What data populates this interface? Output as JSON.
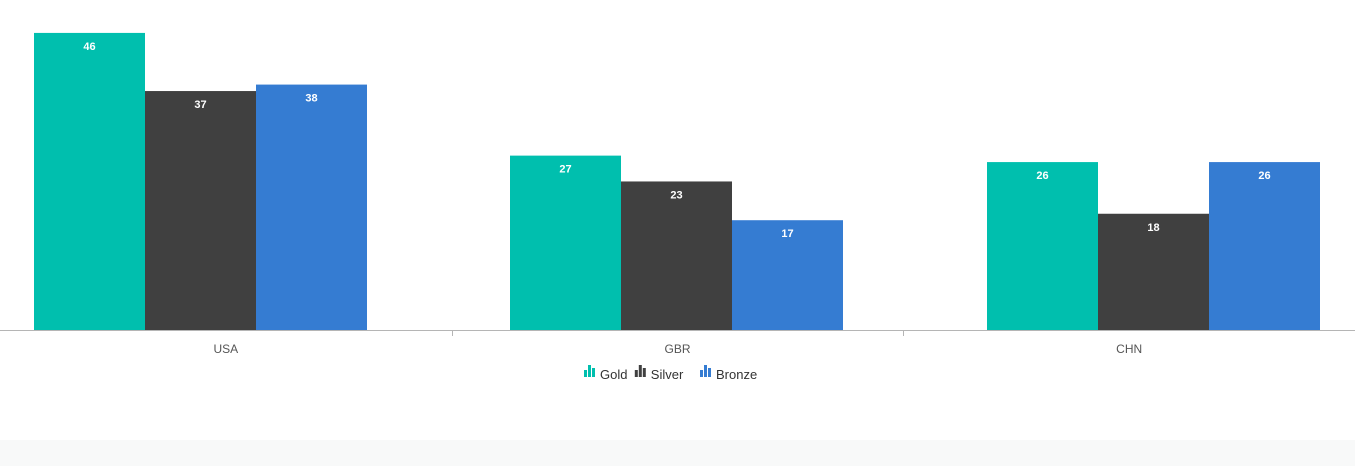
{
  "chart_data": {
    "type": "bar",
    "categories": [
      "USA",
      "GBR",
      "CHN"
    ],
    "series": [
      {
        "name": "Gold",
        "values": [
          46,
          27,
          26
        ],
        "color": "#00BFAE"
      },
      {
        "name": "Silver",
        "values": [
          37,
          23,
          18
        ],
        "color": "#404040"
      },
      {
        "name": "Bronze",
        "values": [
          38,
          17,
          26
        ],
        "color": "#357CD2"
      }
    ],
    "title": "",
    "xlabel": "",
    "ylabel": "",
    "ylim": [
      0,
      48
    ],
    "grid": false,
    "legend": "bottom-center",
    "data_labels": "inside-top"
  }
}
